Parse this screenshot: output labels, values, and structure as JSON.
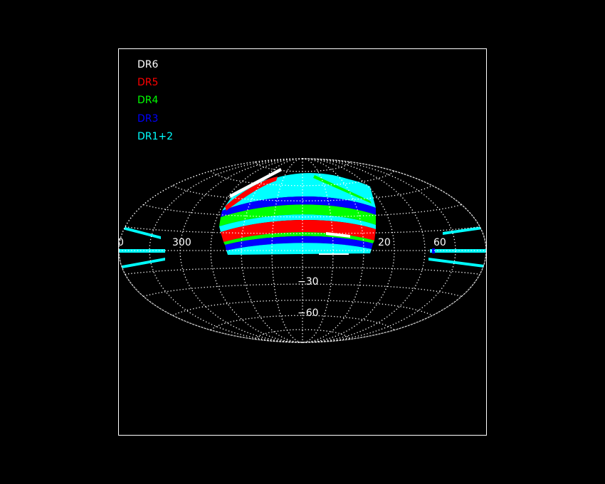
{
  "legend": [
    {
      "label": "DR6",
      "color": "#ffffff"
    },
    {
      "label": "DR5",
      "color": "#ff0000"
    },
    {
      "label": "DR4",
      "color": "#00ff00"
    },
    {
      "label": "DR3",
      "color": "#0000ff"
    },
    {
      "label": "DR1+2",
      "color": "#00ffff"
    }
  ],
  "axis_labels": {
    "lon_300": "300",
    "lon_0": "0",
    "lon_20": "20",
    "lon_60": "60",
    "lat_m30": "−30",
    "lat_m60": "−60"
  },
  "colors": {
    "background": "#000000",
    "frame": "#ffffff",
    "grid": "#ffffff",
    "dr6": "#ffffff",
    "dr5": "#ff0000",
    "dr4": "#00ff00",
    "dr3": "#0000ff",
    "dr12": "#00ffff"
  }
}
